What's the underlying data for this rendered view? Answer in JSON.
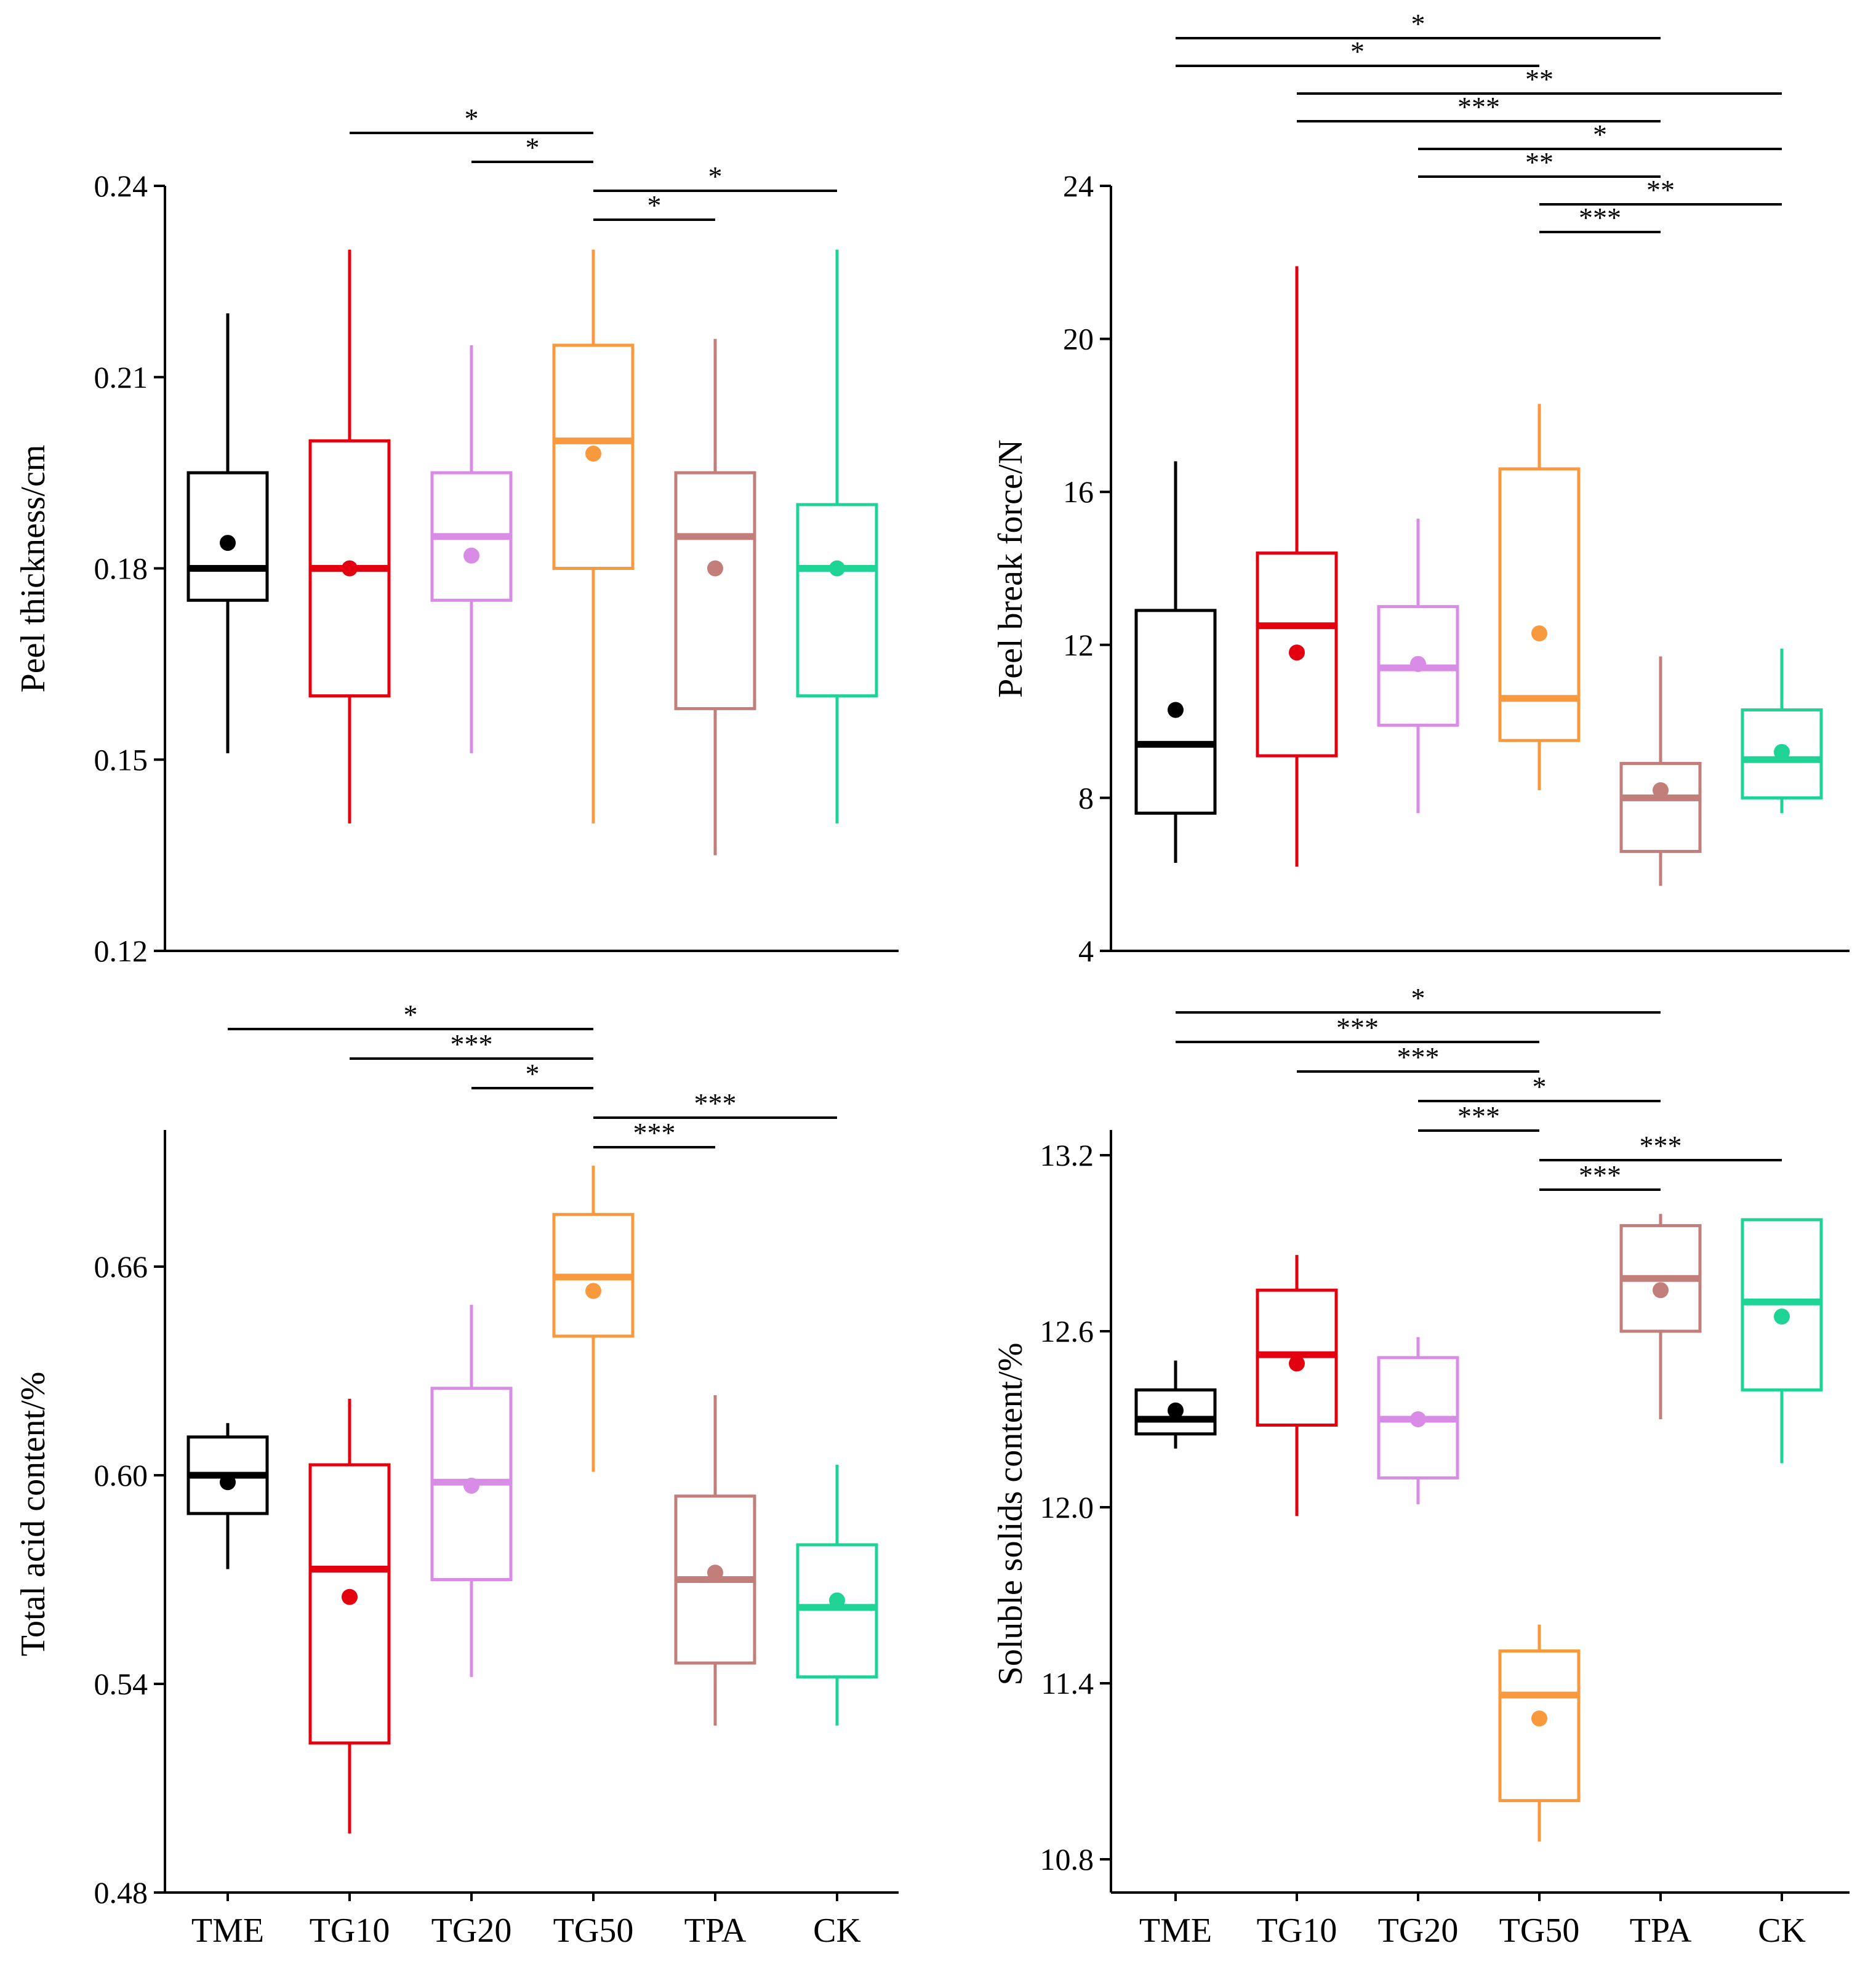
{
  "categories": [
    "TME",
    "TG10",
    "TG20",
    "TG50",
    "TPA",
    "CK"
  ],
  "colors": {
    "TME": "#000000",
    "TG10": "#e3000f",
    "TG20": "#d98ce6",
    "TG50": "#f7993c",
    "TPA": "#c27e7b",
    "CK": "#1fd394"
  },
  "chart_data": [
    {
      "id": "peel-thickness",
      "type": "box",
      "ylabel": "Peel thickness/cm",
      "ylim": [
        0.12,
        0.24
      ],
      "yticks": [
        0.12,
        0.15,
        0.18,
        0.21,
        0.24
      ],
      "ytick_labels": [
        "0.12",
        "0.15",
        "0.18",
        "0.21",
        "0.24"
      ],
      "show_xticks": false,
      "boxes": [
        {
          "category": "TME",
          "min": 0.151,
          "q1": 0.175,
          "median": 0.18,
          "q3": 0.195,
          "max": 0.22,
          "mean": 0.184
        },
        {
          "category": "TG10",
          "min": 0.14,
          "q1": 0.16,
          "median": 0.18,
          "q3": 0.2,
          "max": 0.23,
          "mean": 0.18
        },
        {
          "category": "TG20",
          "min": 0.151,
          "q1": 0.175,
          "median": 0.185,
          "q3": 0.195,
          "max": 0.215,
          "mean": 0.182
        },
        {
          "category": "TG50",
          "min": 0.14,
          "q1": 0.18,
          "median": 0.2,
          "q3": 0.215,
          "max": 0.23,
          "mean": 0.198
        },
        {
          "category": "TPA",
          "min": 0.135,
          "q1": 0.158,
          "median": 0.185,
          "q3": 0.195,
          "max": 0.216,
          "mean": 0.18
        },
        {
          "category": "CK",
          "min": 0.14,
          "q1": 0.16,
          "median": 0.18,
          "q3": 0.19,
          "max": 0.23,
          "mean": 0.18
        }
      ],
      "significance": [
        {
          "from": "TG10",
          "to": "TG50",
          "label": "*"
        },
        {
          "from": "TG20",
          "to": "TG50",
          "label": "*"
        },
        {
          "from": "TG50",
          "to": "CK",
          "label": "*"
        },
        {
          "from": "TG50",
          "to": "TPA",
          "label": "*"
        }
      ]
    },
    {
      "id": "peel-break-force",
      "type": "box",
      "ylabel": "Peel break force/N",
      "ylim": [
        4,
        24
      ],
      "yticks": [
        4,
        8,
        12,
        16,
        20,
        24
      ],
      "ytick_labels": [
        "4",
        "8",
        "12",
        "16",
        "20",
        "24"
      ],
      "show_xticks": false,
      "boxes": [
        {
          "category": "TME",
          "min": 6.3,
          "q1": 7.6,
          "median": 9.4,
          "q3": 12.9,
          "max": 16.8,
          "mean": 10.3
        },
        {
          "category": "TG10",
          "min": 6.2,
          "q1": 9.1,
          "median": 12.5,
          "q3": 14.4,
          "max": 21.9,
          "mean": 11.8
        },
        {
          "category": "TG20",
          "min": 7.6,
          "q1": 9.9,
          "median": 11.4,
          "q3": 13.0,
          "max": 15.3,
          "mean": 11.5
        },
        {
          "category": "TG50",
          "min": 8.2,
          "q1": 9.5,
          "median": 10.6,
          "q3": 16.6,
          "max": 18.3,
          "mean": 12.3
        },
        {
          "category": "TPA",
          "min": 5.7,
          "q1": 6.6,
          "median": 8.0,
          "q3": 8.9,
          "max": 11.7,
          "mean": 8.2
        },
        {
          "category": "CK",
          "min": 7.6,
          "q1": 8.0,
          "median": 9.0,
          "q3": 10.3,
          "max": 11.9,
          "mean": 9.2
        }
      ],
      "significance": [
        {
          "from": "TME",
          "to": "TPA",
          "label": "*"
        },
        {
          "from": "TME",
          "to": "TG50",
          "label": "*"
        },
        {
          "from": "TG10",
          "to": "CK",
          "label": "**"
        },
        {
          "from": "TG10",
          "to": "TPA",
          "label": "***"
        },
        {
          "from": "TG20",
          "to": "CK",
          "label": "*"
        },
        {
          "from": "TG20",
          "to": "TPA",
          "label": "**"
        },
        {
          "from": "TG50",
          "to": "CK",
          "label": "**"
        },
        {
          "from": "TG50",
          "to": "TPA",
          "label": "***"
        }
      ]
    },
    {
      "id": "total-acid-content",
      "type": "box",
      "ylabel": "Total acid content/%",
      "ylim": [
        0.48,
        0.7
      ],
      "yticks": [
        0.48,
        0.54,
        0.6,
        0.66
      ],
      "ytick_labels": [
        "0.48",
        "0.54",
        "0.60",
        "0.66"
      ],
      "show_xticks": true,
      "boxes": [
        {
          "category": "TME",
          "min": 0.573,
          "q1": 0.589,
          "median": 0.6,
          "q3": 0.611,
          "max": 0.615,
          "mean": 0.598
        },
        {
          "category": "TG10",
          "min": 0.497,
          "q1": 0.523,
          "median": 0.573,
          "q3": 0.603,
          "max": 0.622,
          "mean": 0.565
        },
        {
          "category": "TG20",
          "min": 0.542,
          "q1": 0.57,
          "median": 0.598,
          "q3": 0.625,
          "max": 0.649,
          "mean": 0.597
        },
        {
          "category": "TG50",
          "min": 0.601,
          "q1": 0.64,
          "median": 0.657,
          "q3": 0.675,
          "max": 0.689,
          "mean": 0.653
        },
        {
          "category": "TPA",
          "min": 0.528,
          "q1": 0.546,
          "median": 0.57,
          "q3": 0.594,
          "max": 0.623,
          "mean": 0.572
        },
        {
          "category": "CK",
          "min": 0.528,
          "q1": 0.542,
          "median": 0.562,
          "q3": 0.58,
          "max": 0.603,
          "mean": 0.564
        }
      ],
      "significance": [
        {
          "from": "TME",
          "to": "TG50",
          "label": "*"
        },
        {
          "from": "TG10",
          "to": "TG50",
          "label": "***"
        },
        {
          "from": "TG20",
          "to": "TG50",
          "label": "*"
        },
        {
          "from": "TG50",
          "to": "CK",
          "label": "***"
        },
        {
          "from": "TG50",
          "to": "TPA",
          "label": "***"
        }
      ]
    },
    {
      "id": "soluble-solids-content",
      "type": "box",
      "ylabel": "Soluble solids content/%",
      "ylim": [
        10.8,
        13.2
      ],
      "yticks": [
        10.8,
        11.4,
        12.0,
        12.6,
        13.2
      ],
      "ytick_labels": [
        "10.8",
        "11.4",
        "12.0",
        "12.6",
        "13.2"
      ],
      "show_xticks": true,
      "boxes": [
        {
          "category": "TME",
          "min": 12.2,
          "q1": 12.25,
          "median": 12.3,
          "q3": 12.4,
          "max": 12.5,
          "mean": 12.33
        },
        {
          "category": "TG10",
          "min": 11.97,
          "q1": 12.28,
          "median": 12.52,
          "q3": 12.74,
          "max": 12.86,
          "mean": 12.49
        },
        {
          "category": "TG20",
          "min": 12.01,
          "q1": 12.1,
          "median": 12.3,
          "q3": 12.51,
          "max": 12.58,
          "mean": 12.3
        },
        {
          "category": "TG50",
          "min": 10.86,
          "q1": 11.0,
          "median": 11.36,
          "q3": 11.51,
          "max": 11.6,
          "mean": 11.28
        },
        {
          "category": "TPA",
          "min": 12.3,
          "q1": 12.6,
          "median": 12.78,
          "q3": 12.96,
          "max": 13.0,
          "mean": 12.74
        },
        {
          "category": "CK",
          "min": 12.15,
          "q1": 12.4,
          "median": 12.7,
          "q3": 12.98,
          "max": 12.98,
          "mean": 12.65
        }
      ],
      "significance": [
        {
          "from": "TME",
          "to": "TPA",
          "label": "*"
        },
        {
          "from": "TME",
          "to": "TG50",
          "label": "***"
        },
        {
          "from": "TG10",
          "to": "TG50",
          "label": "***"
        },
        {
          "from": "TG20",
          "to": "TPA",
          "label": "*"
        },
        {
          "from": "TG20",
          "to": "TG50",
          "label": "***"
        },
        {
          "from": "TG50",
          "to": "CK",
          "label": "***"
        },
        {
          "from": "TG50",
          "to": "TPA",
          "label": "***"
        }
      ]
    }
  ]
}
